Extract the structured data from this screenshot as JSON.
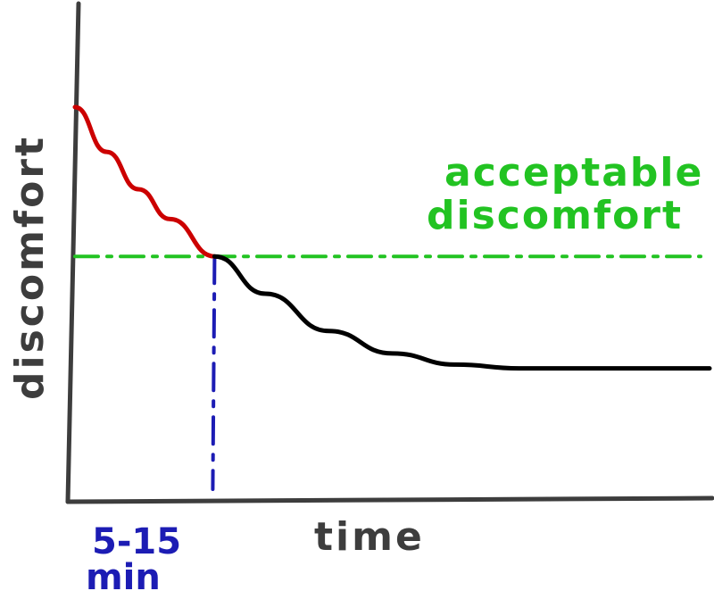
{
  "chart_data": {
    "type": "line",
    "xlabel": "time",
    "ylabel": "discomfort",
    "annotations": {
      "threshold_label_line1": "acceptable",
      "threshold_label_line2": "discomfort",
      "time_marker_line1": "5-15",
      "time_marker_line2": "min"
    },
    "threshold": 0.6,
    "crossing_x": 0.22,
    "series": [
      {
        "x": [
          0,
          0.05,
          0.1,
          0.15,
          0.22,
          0.3,
          0.4,
          0.5,
          0.6,
          0.7,
          0.8,
          0.9,
          1.0
        ],
        "y": [
          1.0,
          0.88,
          0.78,
          0.7,
          0.6,
          0.5,
          0.4,
          0.34,
          0.31,
          0.3,
          0.3,
          0.3,
          0.3
        ]
      }
    ],
    "colors": {
      "above_threshold": "#cc0000",
      "below_threshold": "#000000",
      "threshold_line": "#22c322",
      "time_marker": "#1c1cb4",
      "axes": "#3d3d3d"
    },
    "grid": false
  }
}
